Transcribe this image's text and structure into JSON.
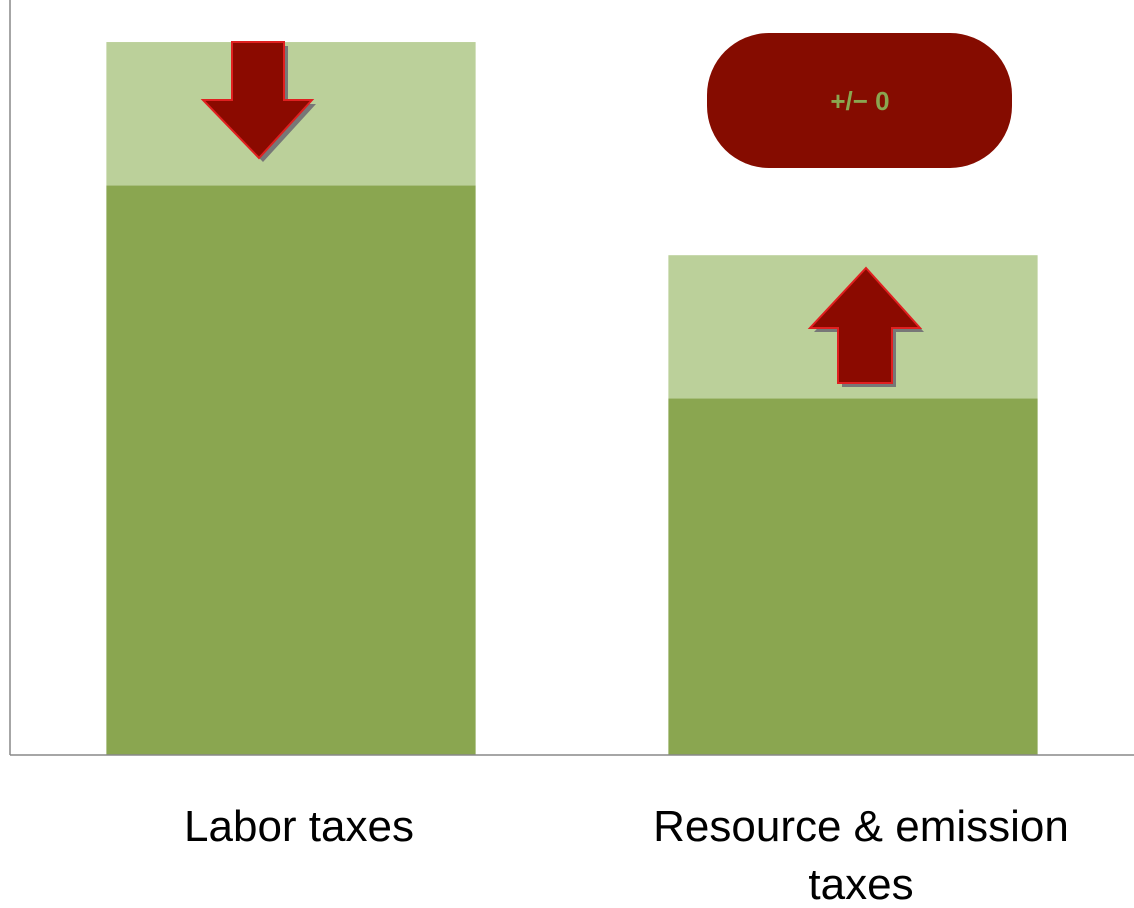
{
  "chart_data": {
    "type": "stacked_bar",
    "categories": [
      "Labor taxes",
      "Resource & emission taxes"
    ],
    "series": [
      {
        "color": "#8aa650",
        "values": [
          77.5,
          48.5
        ]
      },
      {
        "color": "#bbd09a",
        "values": [
          19.5,
          19.5
        ]
      }
    ],
    "ylim": [
      0,
      100
    ],
    "annotation": "+/− 0"
  }
}
